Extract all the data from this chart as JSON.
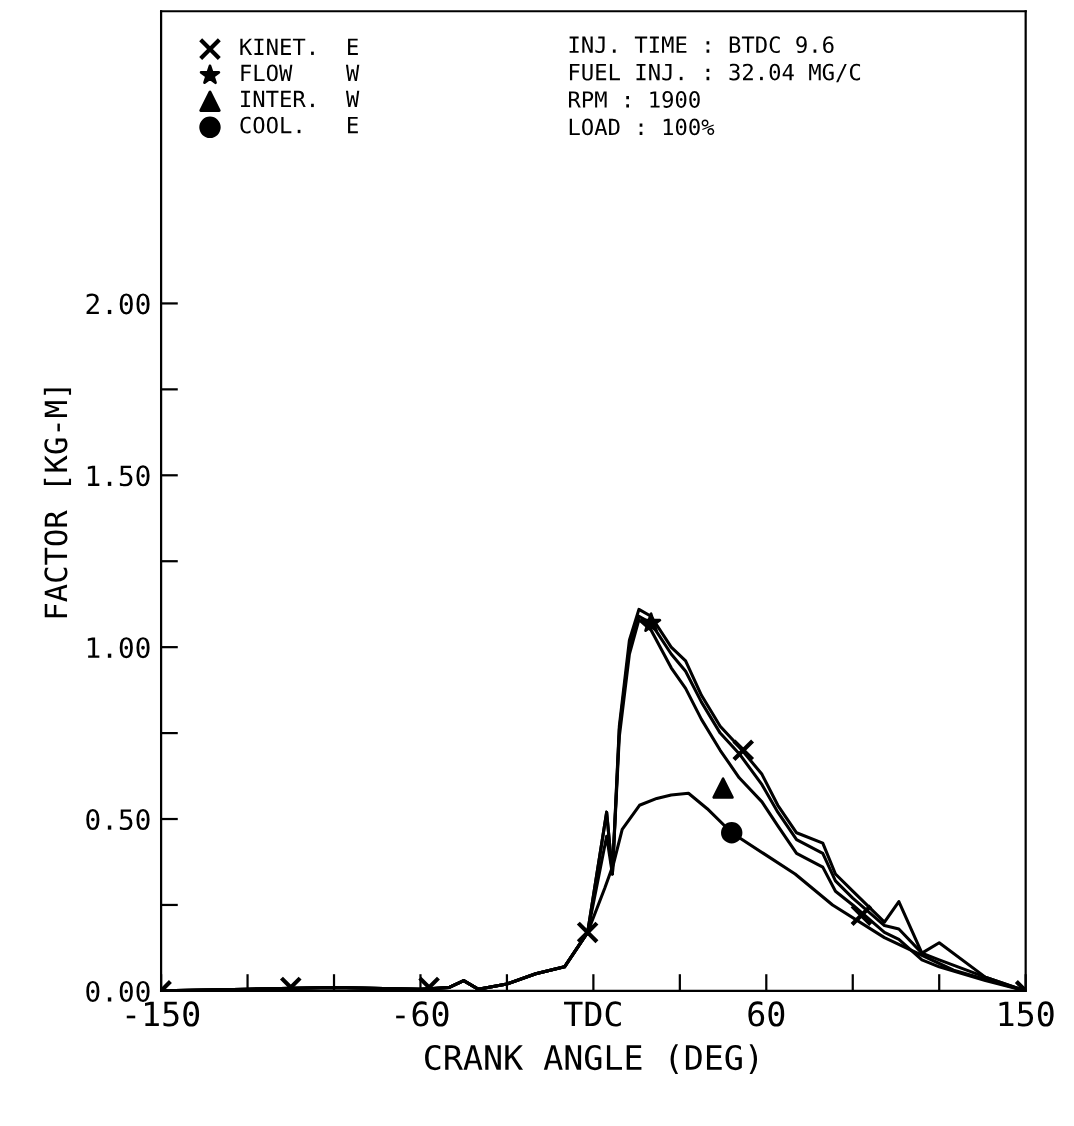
{
  "chart_data": {
    "type": "line",
    "xlabel": "CRANK ANGLE (DEG)",
    "ylabel": "FACTOR [KG-M]",
    "xlim": [
      -150,
      150
    ],
    "ylim": [
      0,
      2.85
    ],
    "xticks": [
      -150,
      {
        "value": -120,
        "label": null
      },
      {
        "value": -90,
        "label": null
      },
      -60,
      {
        "value": -30,
        "label": null
      },
      {
        "value": 0,
        "label": "TDC"
      },
      {
        "value": 30,
        "label": null
      },
      60,
      {
        "value": 90,
        "label": null
      },
      {
        "value": 120,
        "label": null
      },
      150
    ],
    "yticks": [
      {
        "value": 0,
        "label": "0.00"
      },
      {
        "value": 0.25,
        "label": null
      },
      {
        "value": 0.5,
        "label": "0.50"
      },
      {
        "value": 0.75,
        "label": null
      },
      {
        "value": 1.0,
        "label": "1.00"
      },
      {
        "value": 1.25,
        "label": null
      },
      {
        "value": 1.5,
        "label": "1.50"
      },
      {
        "value": 1.75,
        "label": null
      },
      {
        "value": 2.0,
        "label": "2.00"
      }
    ],
    "grid": false,
    "legend": "top left",
    "annotations": [
      "INJ. TIME : BTDC 9.6",
      "FUEL INJ. : 32.04 MG/C",
      "RPM : 1900",
      "LOAD : 100%"
    ],
    "series": [
      {
        "color": "#000000",
        "marker": "none",
        "x": [
          -150,
          -120,
          -90,
          -60,
          -50,
          -45,
          -40,
          -30,
          -20,
          -10,
          -2,
          4.6,
          6.6,
          9,
          12.5,
          15.8,
          20,
          27,
          32,
          37.5,
          44,
          50.6,
          58.5,
          64,
          70.5,
          79.6,
          84,
          90,
          101,
          106,
          114,
          120,
          136,
          150
        ],
        "values": [
          0,
          0.005,
          0.01,
          0.005,
          0.01,
          0.03,
          0.005,
          0.02,
          0.05,
          0.07,
          0.17,
          0.52,
          0.34,
          0.77,
          1.02,
          1.11,
          1.09,
          1.0,
          0.96,
          0.86,
          0.77,
          0.71,
          0.63,
          0.54,
          0.46,
          0.43,
          0.34,
          0.29,
          0.2,
          0.26,
          0.11,
          0.14,
          0.04,
          0
        ]
      },
      {
        "color": "#000000",
        "marker": "none",
        "x": [
          -150,
          -120,
          -90,
          -60,
          -50,
          -45,
          -40,
          -30,
          -20,
          -10,
          -2,
          4.6,
          6.6,
          9,
          12.5,
          15.8,
          20,
          27,
          32,
          37.5,
          44,
          50.6,
          58.5,
          64,
          70.5,
          79.6,
          84,
          90,
          101,
          106,
          114,
          120,
          136,
          150
        ],
        "values": [
          0,
          0.005,
          0.01,
          0.005,
          0.01,
          0.03,
          0.005,
          0.02,
          0.05,
          0.07,
          0.17,
          0.52,
          0.34,
          0.76,
          1.0,
          1.09,
          1.07,
          0.98,
          0.93,
          0.84,
          0.75,
          0.69,
          0.6,
          0.52,
          0.44,
          0.4,
          0.32,
          0.27,
          0.19,
          0.18,
          0.11,
          0.09,
          0.04,
          0
        ]
      },
      {
        "color": "#000000",
        "marker": "none",
        "x": [
          -150,
          -120,
          -90,
          -60,
          -50,
          -45,
          -40,
          -30,
          -20,
          -10,
          -2,
          4.6,
          6.6,
          9,
          12.5,
          15.8,
          20,
          27,
          32,
          37.5,
          44,
          50.6,
          58.5,
          64,
          70.5,
          79.6,
          84,
          90,
          101,
          106,
          114,
          120,
          136,
          150
        ],
        "values": [
          0,
          0.005,
          0.01,
          0.005,
          0.01,
          0.03,
          0.005,
          0.02,
          0.05,
          0.07,
          0.17,
          0.45,
          0.34,
          0.74,
          0.98,
          1.08,
          1.05,
          0.94,
          0.88,
          0.79,
          0.7,
          0.62,
          0.55,
          0.48,
          0.4,
          0.36,
          0.29,
          0.25,
          0.17,
          0.15,
          0.09,
          0.07,
          0.03,
          0
        ]
      },
      {
        "color": "#000000",
        "marker": "none",
        "x": [
          -150,
          -120,
          -90,
          -60,
          -50,
          -45,
          -40,
          -30,
          -20,
          -10,
          -2,
          4,
          7,
          10,
          16,
          22,
          27,
          33,
          39.5,
          48,
          59,
          70,
          83,
          101,
          125,
          150
        ],
        "values": [
          0,
          0.005,
          0.01,
          0.005,
          0.01,
          0.03,
          0.005,
          0.02,
          0.05,
          0.07,
          0.17,
          0.3,
          0.37,
          0.47,
          0.54,
          0.56,
          0.57,
          0.575,
          0.53,
          0.46,
          0.4,
          0.34,
          0.25,
          0.155,
          0.06,
          0
        ]
      },
      {
        "type": "scatter",
        "name": "KINET.  E",
        "color": "#000000",
        "marker": "cross",
        "x": [
          -150,
          -105,
          -57,
          -2,
          52,
          93,
          150
        ],
        "values": [
          0,
          0.01,
          0.01,
          0.17,
          0.7,
          0.22,
          0
        ]
      },
      {
        "type": "scatter",
        "name": "FLOW    W",
        "color": "#000000",
        "marker": "star",
        "x": [
          20
        ],
        "values": [
          1.07
        ]
      },
      {
        "type": "scatter",
        "name": "INTER.  W",
        "color": "#000000",
        "marker": "triangle",
        "x": [
          45
        ],
        "values": [
          0.59
        ]
      },
      {
        "type": "scatter",
        "name": "COOL.   E",
        "color": "#000000",
        "marker": "circle",
        "x": [
          48
        ],
        "values": [
          0.46
        ]
      }
    ]
  }
}
